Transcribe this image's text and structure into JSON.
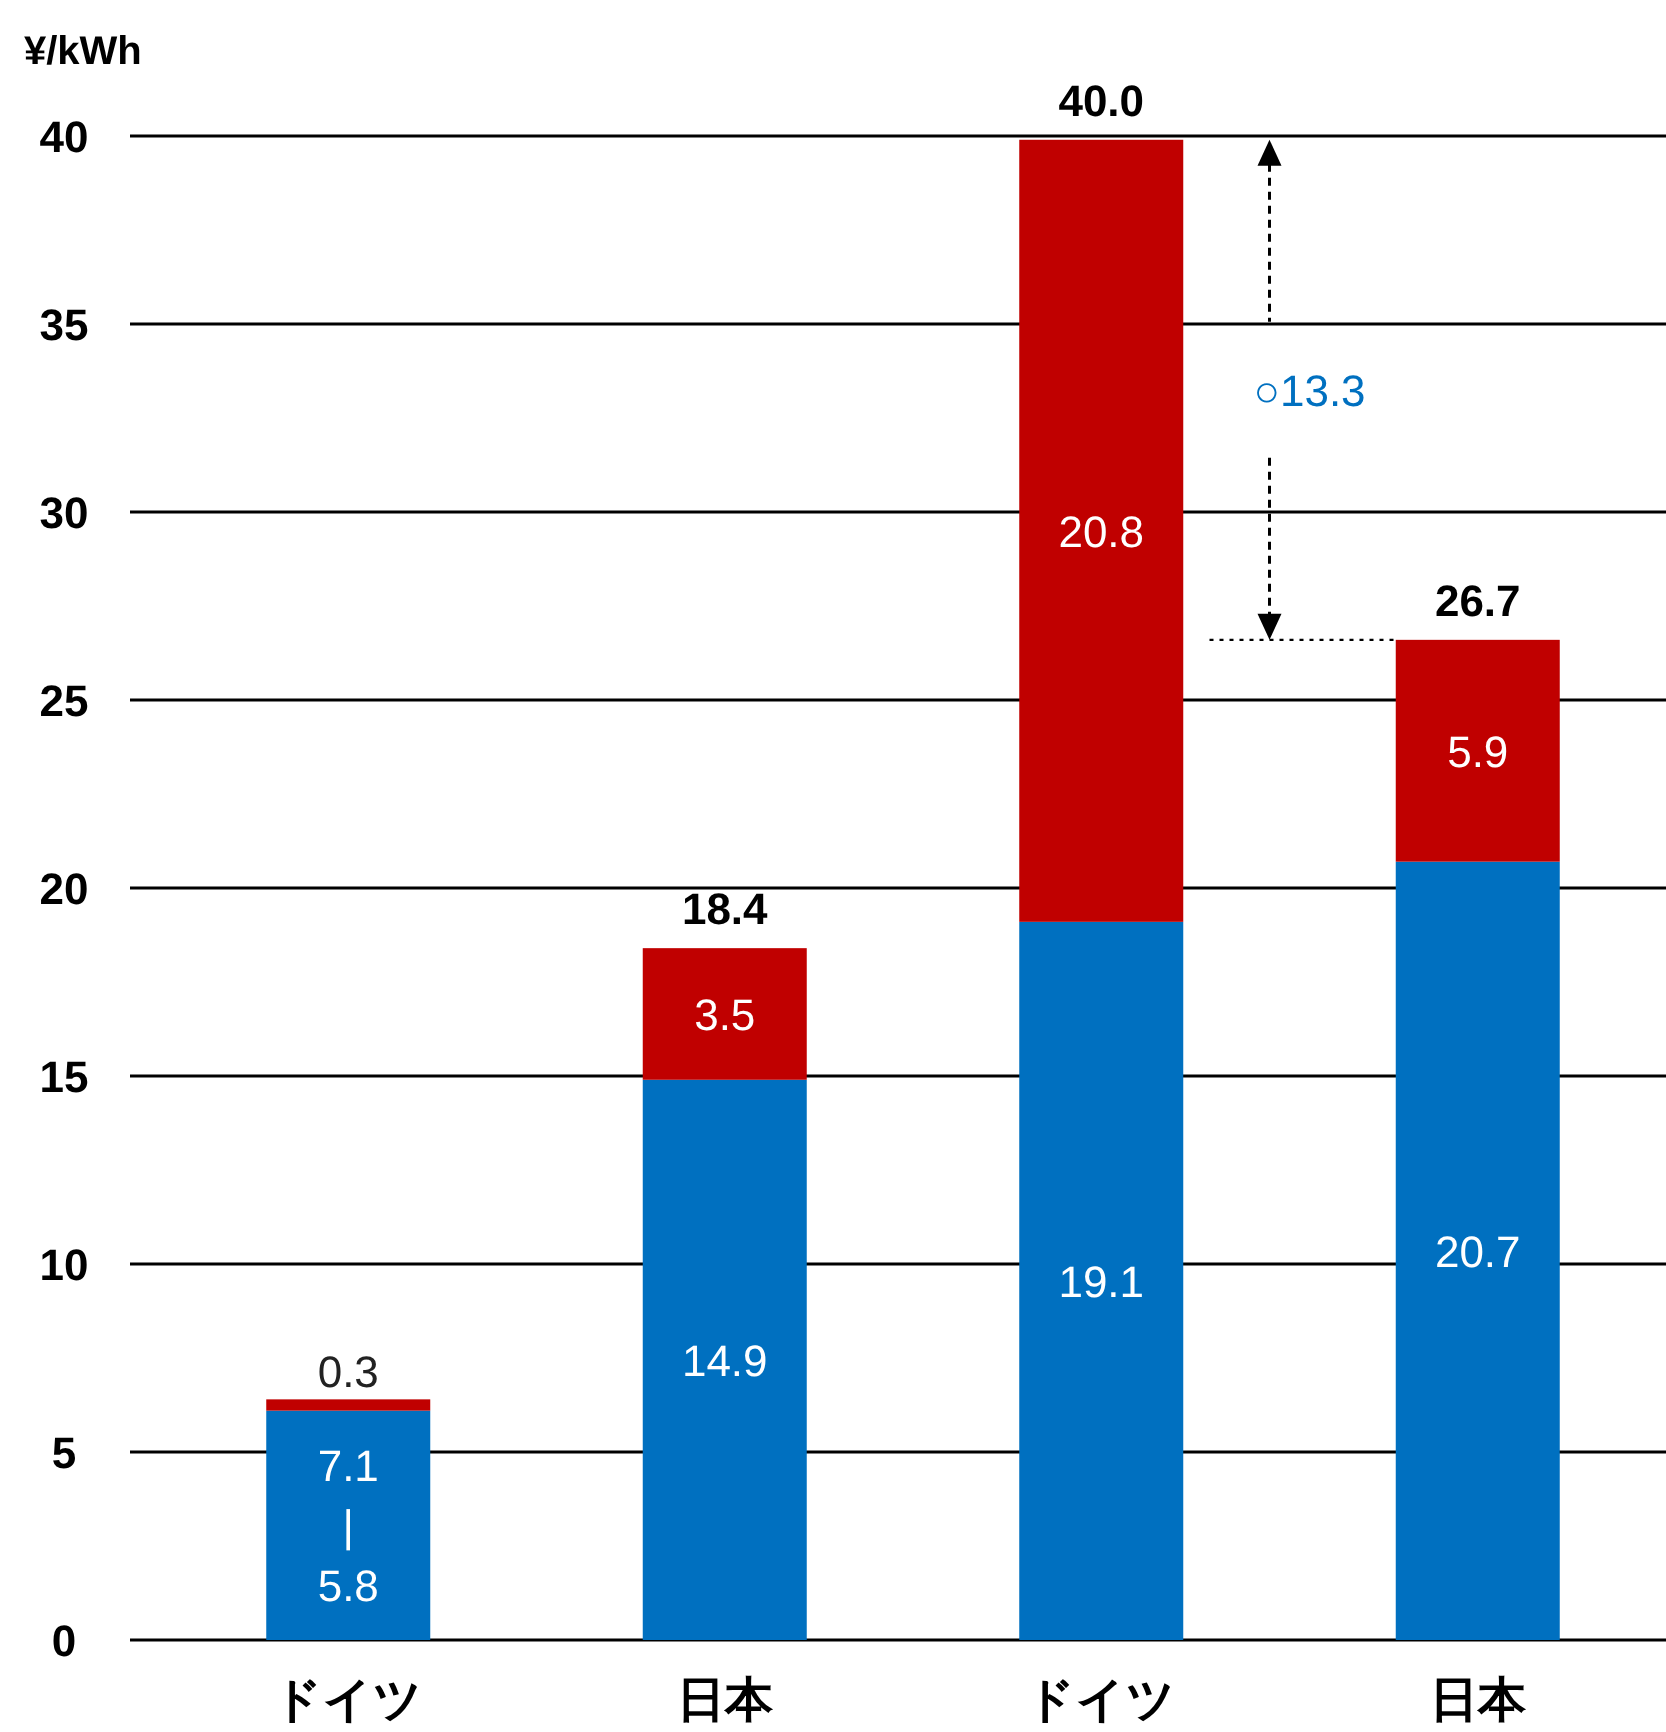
{
  "chart_data": {
    "type": "bar",
    "stacked": true,
    "ylabel": "¥/kWh",
    "categories": [
      "ドイツ",
      "日本",
      "ドイツ",
      "日本"
    ],
    "series": [
      {
        "color": "#0070c0",
        "values": [
          6.1,
          14.9,
          19.1,
          20.7
        ],
        "value_labels": [
          null,
          "14.9",
          "19.1",
          "20.7"
        ]
      },
      {
        "color": "#c00000",
        "values": [
          0.3,
          3.5,
          20.8,
          5.9
        ],
        "value_labels": [
          "0.3",
          "3.5",
          "20.8",
          "5.9"
        ]
      }
    ],
    "totals": [
      null,
      "18.4",
      "40.0",
      "26.7"
    ],
    "annotations": [
      "7.1\n|\n5.8",
      "○13.3"
    ],
    "ylim": [
      0,
      40
    ],
    "yticks": [
      0,
      5,
      10,
      15,
      20,
      25,
      30,
      35,
      40
    ],
    "grid": "y"
  }
}
